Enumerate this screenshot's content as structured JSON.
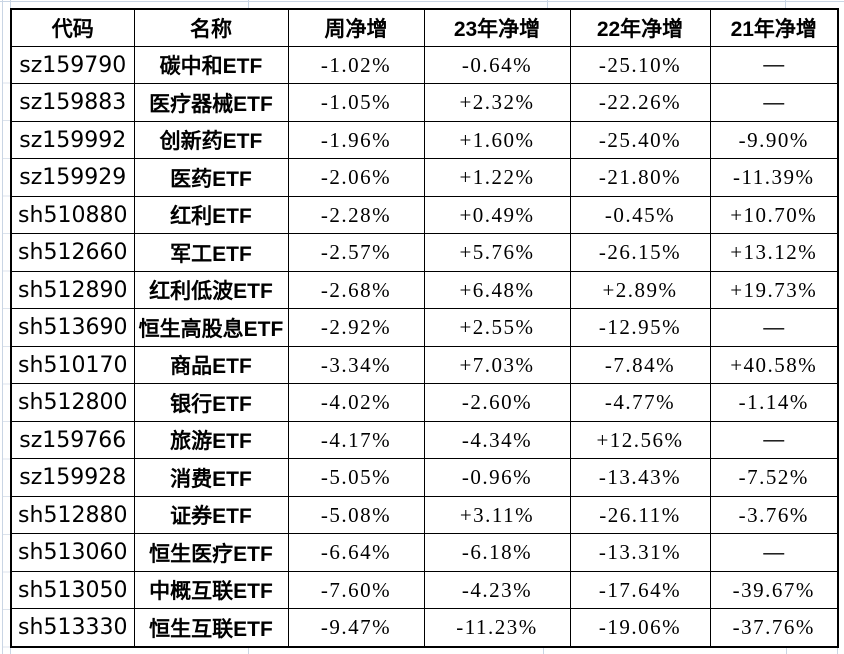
{
  "chart_data": {
    "type": "table",
    "columns": [
      "代码",
      "名称",
      "周净增",
      "23年净增",
      "22年净增",
      "21年净增"
    ],
    "rows": [
      [
        "sz159790",
        "碳中和ETF",
        "-1.02%",
        "-0.64%",
        "-25.10%",
        "—"
      ],
      [
        "sz159883",
        "医疗器械ETF",
        "-1.05%",
        "+2.32%",
        "-22.26%",
        "—"
      ],
      [
        "sz159992",
        "创新药ETF",
        "-1.96%",
        "+1.60%",
        "-25.40%",
        "-9.90%"
      ],
      [
        "sz159929",
        "医药ETF",
        "-2.06%",
        "+1.22%",
        "-21.80%",
        "-11.39%"
      ],
      [
        "sh510880",
        "红利ETF",
        "-2.28%",
        "+0.49%",
        "-0.45%",
        "+10.70%"
      ],
      [
        "sh512660",
        "军工ETF",
        "-2.57%",
        "+5.76%",
        "-26.15%",
        "+13.12%"
      ],
      [
        "sh512890",
        "红利低波ETF",
        "-2.68%",
        "+6.48%",
        "+2.89%",
        "+19.73%"
      ],
      [
        "sh513690",
        "恒生高股息ETF",
        "-2.92%",
        "+2.55%",
        "-12.95%",
        "—"
      ],
      [
        "sh510170",
        "商品ETF",
        "-3.34%",
        "+7.03%",
        "-7.84%",
        "+40.58%"
      ],
      [
        "sh512800",
        "银行ETF",
        "-4.02%",
        "-2.60%",
        "-4.77%",
        "-1.14%"
      ],
      [
        "sz159766",
        "旅游ETF",
        "-4.17%",
        "-4.34%",
        "+12.56%",
        "—"
      ],
      [
        "sz159928",
        "消费ETF",
        "-5.05%",
        "-0.96%",
        "-13.43%",
        "-7.52%"
      ],
      [
        "sh512880",
        "证券ETF",
        "-5.08%",
        "+3.11%",
        "-26.11%",
        "-3.76%"
      ],
      [
        "sh513060",
        "恒生医疗ETF",
        "-6.64%",
        "-6.18%",
        "-13.31%",
        "—"
      ],
      [
        "sh513050",
        "中概互联ETF",
        "-7.60%",
        "-4.23%",
        "-17.64%",
        "-39.67%"
      ],
      [
        "sh513330",
        "恒生互联ETF",
        "-9.47%",
        "-11.23%",
        "-19.06%",
        "-37.76%"
      ]
    ]
  },
  "colors": {
    "positive": "#e23c3c",
    "negative": "#1ca04c",
    "neutral": "#000000",
    "border": "#000000",
    "gridline": "#c9d5e4"
  }
}
